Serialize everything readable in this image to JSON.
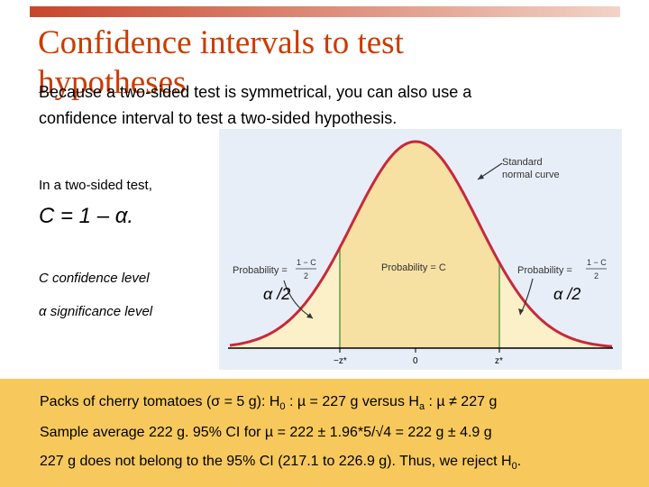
{
  "slide": {
    "title_line1": "Confidence intervals to test",
    "title_line2": "hypotheses",
    "intro": "Because a two-sided test is symmetrical, you can also use a confidence interval to test a two-sided hypothesis.",
    "two_sided_label": "In a two-sided test,",
    "formula": "C = 1 – α.",
    "c_def": "C confidence level",
    "alpha_def": "α significance level",
    "alpha_half_left": "α /2",
    "alpha_half_right": "α /2"
  },
  "figure": {
    "curve_label": [
      "Standard",
      "normal curve"
    ],
    "prob_left": "Probability =",
    "prob_center": "Probability = C",
    "prob_right": "Probability =",
    "frac_num": "1 − C",
    "frac_den": "2",
    "tick_neg": "−z*",
    "tick_zero": "0",
    "tick_pos": "z*"
  },
  "panel": {
    "line1_a": "Packs of cherry tomatoes (σ = 5 g): H",
    "line1_sub0": "0",
    "line1_b": " : µ = 227 g versus H",
    "line1_suba": "a",
    "line1_c": " : µ ≠ 227 g",
    "line2": "Sample average 222 g. 95% CI for µ = 222 ± 1.96*5/√4 = 222 g ± 4.9 g",
    "line3_a": "227 g does not belong to the 95% CI (217.1 to 226.9 g). Thus, we reject H",
    "line3_sub": "0",
    "line3_end": "."
  },
  "colors": {
    "title": "#cc3b00",
    "panel": "#f7c95c",
    "figure_bg": "#e8eef7",
    "center_fill": "#f6e0a2",
    "tail_fill": "#fbf0c8",
    "curve": "#c8283c",
    "cut_line": "#5a9e48"
  }
}
